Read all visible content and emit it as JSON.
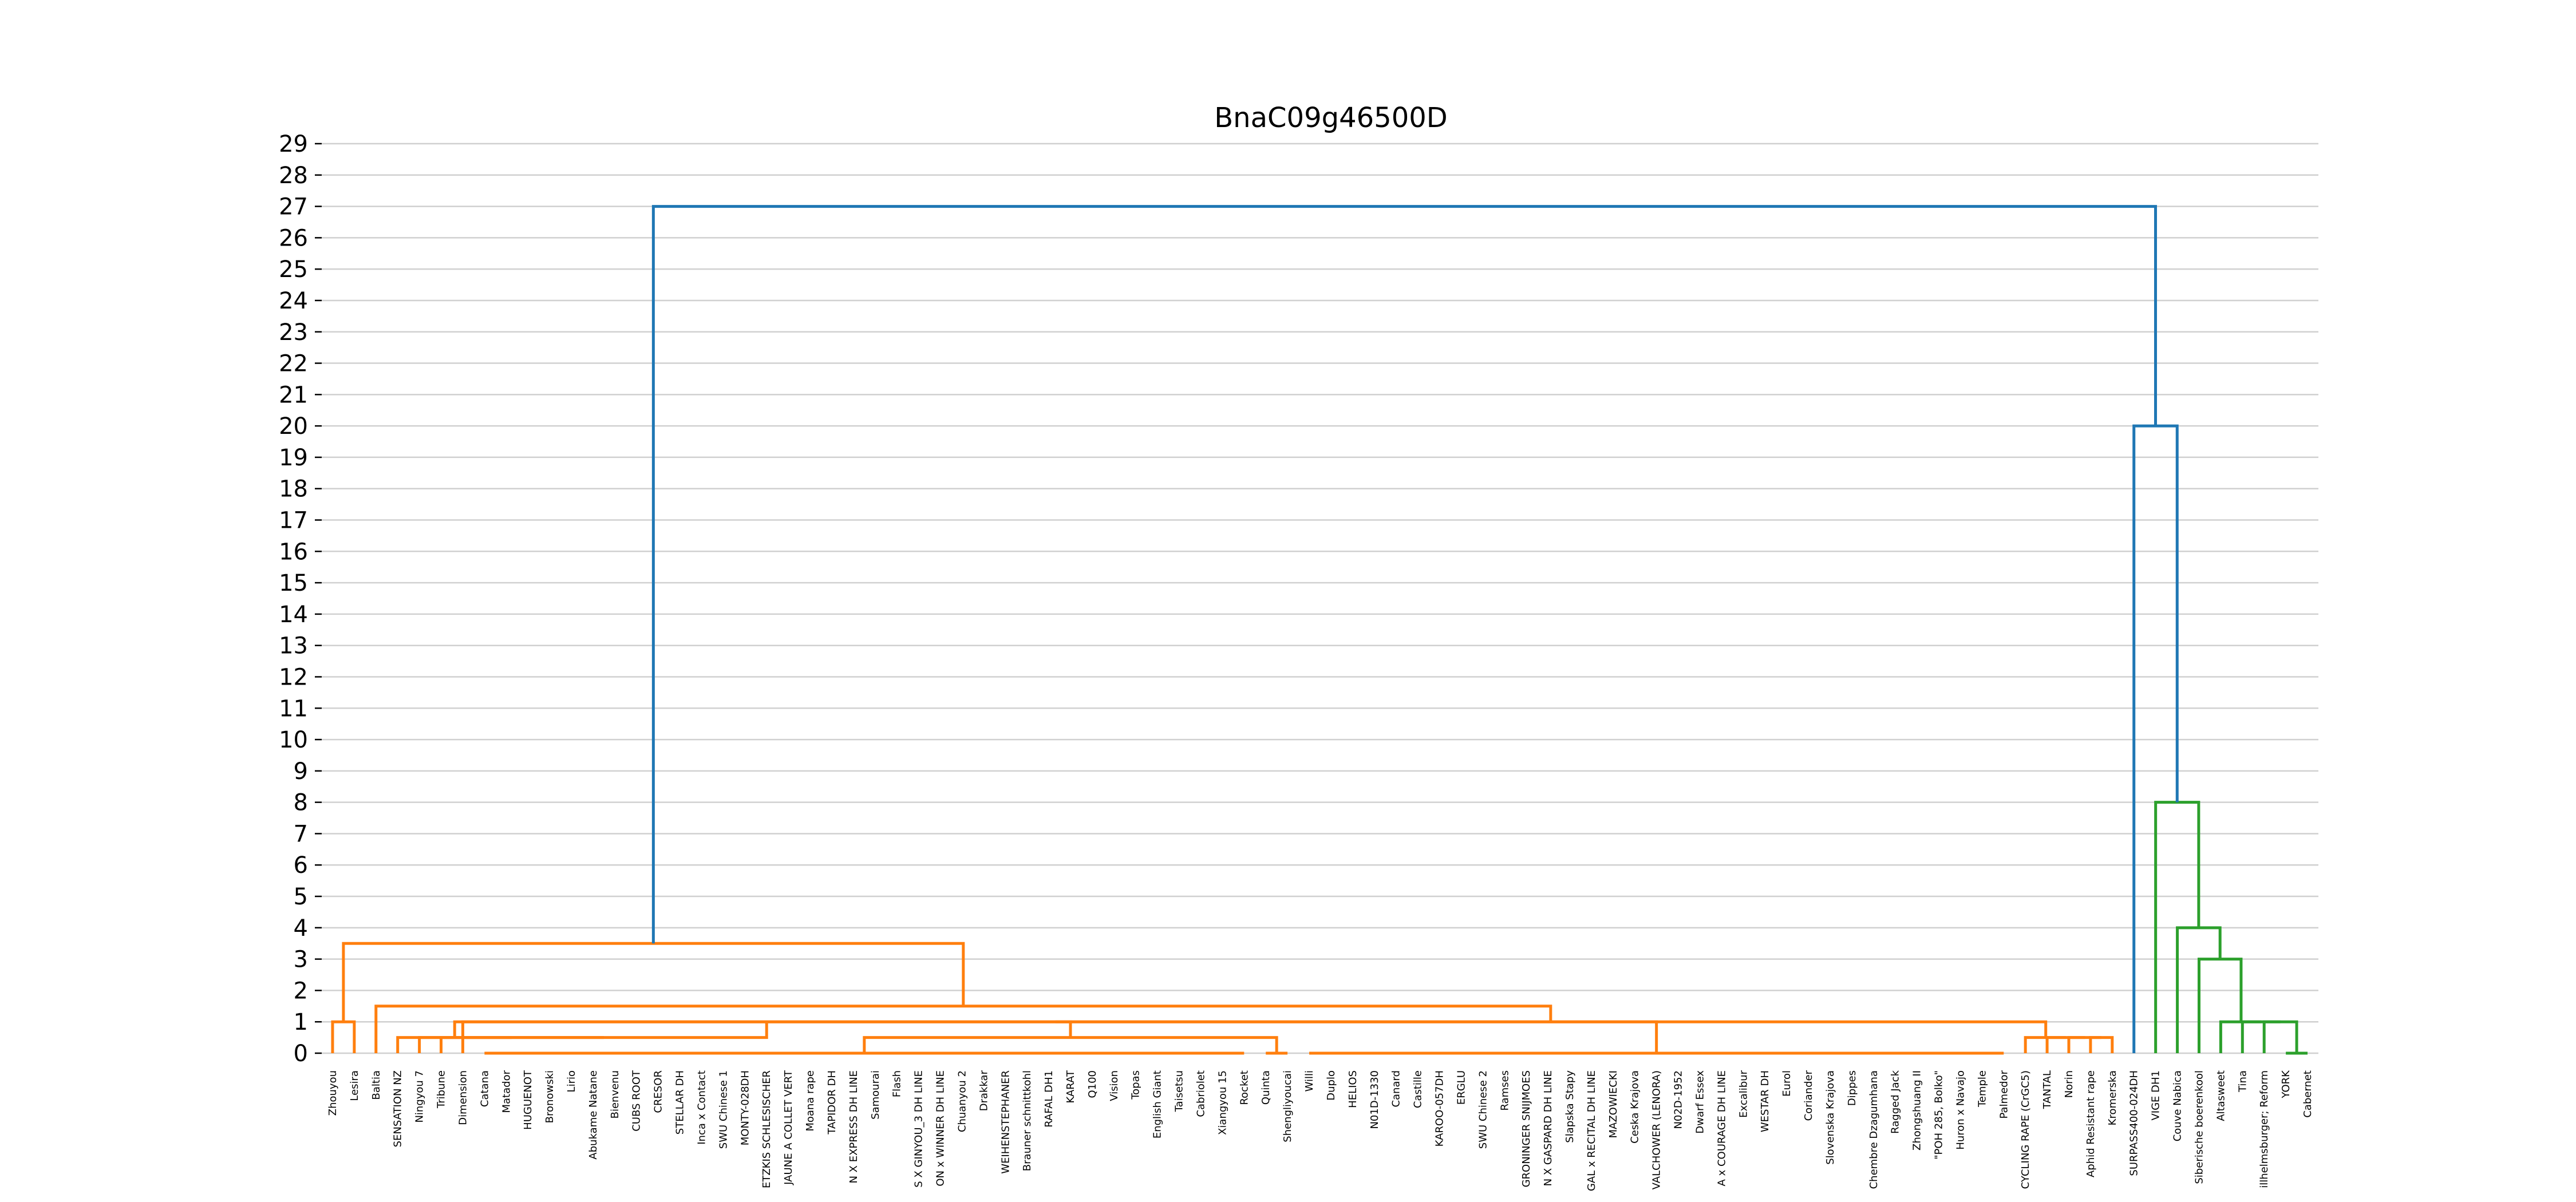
{
  "chart_data": {
    "type": "dendrogram",
    "title": "BnaC09g46500D",
    "xlabel": "",
    "ylabel": "",
    "ylim": [
      0,
      29
    ],
    "yticks": [
      0,
      1,
      2,
      3,
      4,
      5,
      6,
      7,
      8,
      9,
      10,
      11,
      12,
      13,
      14,
      15,
      16,
      17,
      18,
      19,
      20,
      21,
      22,
      23,
      24,
      25,
      26,
      27,
      28,
      29
    ],
    "grid": "horizontal",
    "colors": {
      "root": "#1f77b4",
      "cluster1": "#ff7f0e",
      "cluster2": "#2ca02c",
      "grid": "#d0d0d0"
    },
    "leaves": [
      "Zhouyou",
      "Lesira",
      "Baltia",
      "SENSATION NZ",
      "Ningyou 7",
      "Tribune",
      "Dimension",
      "Catana",
      "Matador",
      "HUGUENOT",
      "Bronowski",
      "Lirio",
      "Abukame Natane",
      "Bienvenu",
      "CUBS ROOT",
      "CRESOR",
      "STELLAR DH",
      "Inca x Contact",
      "SWU Chinese 1",
      "MONTY-028DH",
      "ETZKIS SCHLESISCHER",
      "JAUNE A COLLET VERT",
      "Moana rape",
      "TAPIDOR DH",
      "N X EXPRESS DH LINE",
      "Samourai",
      "Flash",
      "S X GINYOU_3 DH LINE",
      "ON x WINNER DH LINE",
      "Chuanyou 2",
      "Drakkar",
      "WEIHENSTEPHANER",
      "Brauner schnittkohl",
      "RAFAL DH1",
      "KARAT",
      "Q100",
      "Vision",
      "Topas",
      "English Giant",
      "Taisetsu",
      "Cabriolet",
      "Xiangyou 15",
      "Rocket",
      "Quinta",
      "Shengliyoucai",
      "Willi",
      "Duplo",
      "HELIOS",
      "N01D-1330",
      "Canard",
      "Castille",
      "KAROO-057DH",
      "ERGLU",
      "SWU Chinese 2",
      "Ramses",
      "GRONINGER SNIJMOES",
      "N X GASPARD DH LINE",
      "Slapska Stapy",
      "GAL x RECITAL DH LINE",
      "MAZOWIECKI",
      "Ceska Krajova",
      "VALCHOWER (LENORA)",
      "N02D-1952",
      "Dwarf Essex",
      "A x COURAGE DH LINE",
      "Excalibur",
      "WESTAR DH",
      "Eurol",
      "Coriander",
      "Slovenska Krajova",
      "Dippes",
      "Chembre Dzagumhana",
      "Ragged Jack",
      "Zhongshuang II",
      "\"POH 285, Bolko\"",
      "Huron x Navajo",
      "Temple",
      "Palmedor",
      "CYCLING RAPE (CrGC5)",
      "TANTAL",
      "Norin",
      "Aphid Resistant rape",
      "Kromerska",
      "SURPASS400-024DH",
      "VIGE DH1",
      "Couve Nabica",
      "Siberische boerenkool",
      "Altasweet",
      "Tina",
      "illhelmsburger; Reform",
      "YORK",
      "Cabernet"
    ],
    "links": [
      {
        "a": [
          "leaf",
          0
        ],
        "b": [
          "leaf",
          1
        ],
        "h": 1,
        "c": "cluster1"
      },
      {
        "a": [
          "leaf",
          43
        ],
        "b": [
          "leaf",
          44
        ],
        "h": 0,
        "c": "cluster1"
      },
      {
        "a": [
          "leaf",
          45
        ],
        "b": [
          "leaf",
          77
        ],
        "h": 0,
        "c": "cluster1"
      },
      {
        "a": [
          "leaf",
          7
        ],
        "b": [
          "leaf",
          42
        ],
        "h": 0,
        "c": "cluster1"
      },
      {
        "a": [
          "node",
          3
        ],
        "b": [
          "node",
          1
        ],
        "h": 0.5,
        "c": "cluster1"
      },
      {
        "a": [
          "leaf",
          6
        ],
        "b": [
          "node",
          4
        ],
        "h": 1,
        "c": "cluster1"
      },
      {
        "a": [
          "leaf",
          5
        ],
        "b": [
          "node",
          5
        ],
        "h": 0.5,
        "c": "cluster1"
      },
      {
        "a": [
          "leaf",
          4
        ],
        "b": [
          "node",
          6
        ],
        "h": 0.5,
        "c": "cluster1"
      },
      {
        "a": [
          "leaf",
          3
        ],
        "b": [
          "node",
          7
        ],
        "h": 0.5,
        "c": "cluster1"
      },
      {
        "a": [
          "leaf",
          81
        ],
        "b": [
          "leaf",
          82
        ],
        "h": 0.5,
        "c": "cluster1"
      },
      {
        "a": [
          "leaf",
          80
        ],
        "b": [
          "node",
          9
        ],
        "h": 0.5,
        "c": "cluster1"
      },
      {
        "a": [
          "leaf",
          79
        ],
        "b": [
          "node",
          10
        ],
        "h": 0.5,
        "c": "cluster1"
      },
      {
        "a": [
          "leaf",
          78
        ],
        "b": [
          "node",
          11
        ],
        "h": 0.5,
        "c": "cluster1"
      },
      {
        "a": [
          "node",
          8
        ],
        "b": [
          "node",
          2
        ],
        "h": 1,
        "c": "cluster1"
      },
      {
        "a": [
          "node",
          13
        ],
        "b": [
          "node",
          12
        ],
        "h": 1,
        "c": "cluster1"
      },
      {
        "a": [
          "leaf",
          2
        ],
        "b": [
          "node",
          14
        ],
        "h": 1.5,
        "c": "cluster1"
      },
      {
        "a": [
          "node",
          0
        ],
        "b": [
          "node",
          15
        ],
        "h": 3.5,
        "c": "cluster1"
      },
      {
        "a": [
          "leaf",
          90
        ],
        "b": [
          "leaf",
          91
        ],
        "h": 0,
        "c": "cluster2"
      },
      {
        "a": [
          "leaf",
          89
        ],
        "b": [
          "node",
          17
        ],
        "h": 1,
        "c": "cluster2"
      },
      {
        "a": [
          "leaf",
          88
        ],
        "b": [
          "node",
          18
        ],
        "h": 1,
        "c": "cluster2"
      },
      {
        "a": [
          "leaf",
          87
        ],
        "b": [
          "node",
          19
        ],
        "h": 1,
        "c": "cluster2"
      },
      {
        "a": [
          "leaf",
          86
        ],
        "b": [
          "node",
          20
        ],
        "h": 3,
        "c": "cluster2"
      },
      {
        "a": [
          "leaf",
          85
        ],
        "b": [
          "node",
          21
        ],
        "h": 4,
        "c": "cluster2"
      },
      {
        "a": [
          "leaf",
          84
        ],
        "b": [
          "node",
          22
        ],
        "h": 8,
        "c": "cluster2"
      },
      {
        "a": [
          "leaf",
          83
        ],
        "b": [
          "node",
          23
        ],
        "h": 20,
        "c": "root"
      },
      {
        "a": [
          "node",
          16
        ],
        "b": [
          "node",
          24
        ],
        "h": 27,
        "c": "root"
      }
    ]
  }
}
